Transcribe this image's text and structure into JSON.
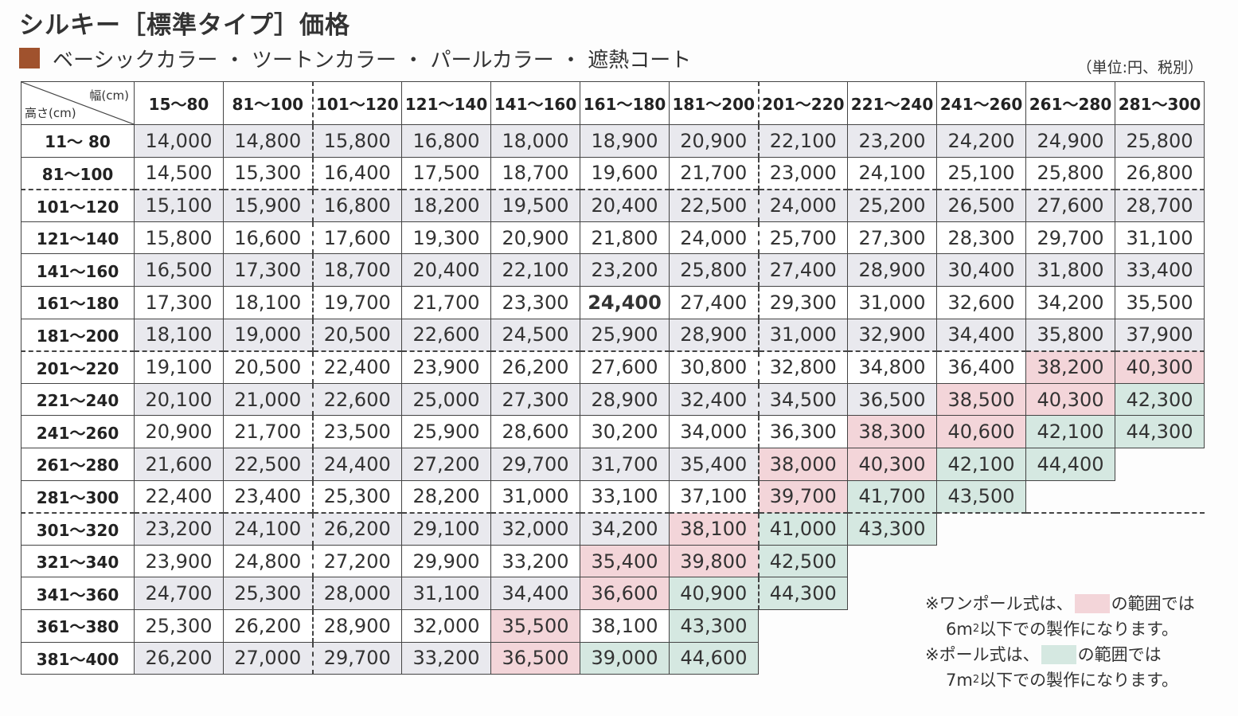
{
  "title": "シルキー［標準タイプ］価格",
  "subtitle": "ベーシックカラー ・ ツートンカラー ・ パールカラー ・ 遮熱コート",
  "unit_note": "（単位:円、税別）",
  "colors": {
    "swatch": "#a0522d",
    "pink": "#f3d5d9",
    "green": "#d5e8e1",
    "row_shade": "#e9e9ee"
  },
  "table": {
    "corner_width_label": "幅(cm)",
    "corner_height_label": "高さ(cm)",
    "columns": [
      "15～80",
      "81～100",
      "101～120",
      "121～140",
      "141～160",
      "161～180",
      "181～200",
      "201～220",
      "221～240",
      "241～260",
      "261～280",
      "281～300"
    ],
    "rows": [
      {
        "label": "11～ 80",
        "values": [
          "14,000",
          "14,800",
          "15,800",
          "16,800",
          "18,000",
          "18,900",
          "20,900",
          "22,100",
          "23,200",
          "24,200",
          "24,900",
          "25,800"
        ]
      },
      {
        "label": "81～100",
        "values": [
          "14,500",
          "15,300",
          "16,400",
          "17,500",
          "18,700",
          "19,600",
          "21,700",
          "23,000",
          "24,100",
          "25,100",
          "25,800",
          "26,800"
        ]
      },
      {
        "label": "101～120",
        "values": [
          "15,100",
          "15,900",
          "16,800",
          "18,200",
          "19,500",
          "20,400",
          "22,500",
          "24,000",
          "25,200",
          "26,500",
          "27,600",
          "28,700"
        ]
      },
      {
        "label": "121～140",
        "values": [
          "15,800",
          "16,600",
          "17,600",
          "19,300",
          "20,900",
          "21,800",
          "24,000",
          "25,700",
          "27,300",
          "28,300",
          "29,700",
          "31,100"
        ]
      },
      {
        "label": "141～160",
        "values": [
          "16,500",
          "17,300",
          "18,700",
          "20,400",
          "22,100",
          "23,200",
          "25,800",
          "27,400",
          "28,900",
          "30,400",
          "31,800",
          "33,400"
        ]
      },
      {
        "label": "161～180",
        "values": [
          "17,300",
          "18,100",
          "19,700",
          "21,700",
          "23,300",
          "24,400",
          "27,400",
          "29,300",
          "31,000",
          "32,600",
          "34,200",
          "35,500"
        ]
      },
      {
        "label": "181～200",
        "values": [
          "18,100",
          "19,000",
          "20,500",
          "22,600",
          "24,500",
          "25,900",
          "28,900",
          "31,000",
          "32,900",
          "34,400",
          "35,800",
          "37,900"
        ]
      },
      {
        "label": "201～220",
        "values": [
          "19,100",
          "20,500",
          "22,400",
          "23,900",
          "26,200",
          "27,600",
          "30,800",
          "32,800",
          "34,800",
          "36,400",
          "38,200",
          "40,300"
        ]
      },
      {
        "label": "221～240",
        "values": [
          "20,100",
          "21,000",
          "22,600",
          "25,000",
          "27,300",
          "28,900",
          "32,400",
          "34,500",
          "36,500",
          "38,500",
          "40,300",
          "42,300"
        ]
      },
      {
        "label": "241～260",
        "values": [
          "20,900",
          "21,700",
          "23,500",
          "25,900",
          "28,600",
          "30,200",
          "34,000",
          "36,300",
          "38,300",
          "40,600",
          "42,100",
          "44,300"
        ]
      },
      {
        "label": "261～280",
        "values": [
          "21,600",
          "22,500",
          "24,400",
          "27,200",
          "29,700",
          "31,700",
          "35,400",
          "38,000",
          "40,300",
          "42,100",
          "44,400"
        ]
      },
      {
        "label": "281～300",
        "values": [
          "22,400",
          "23,400",
          "25,300",
          "28,200",
          "31,000",
          "33,100",
          "37,100",
          "39,700",
          "41,700",
          "43,500"
        ]
      },
      {
        "label": "301～320",
        "values": [
          "23,200",
          "24,100",
          "26,200",
          "29,100",
          "32,000",
          "34,200",
          "38,100",
          "41,000",
          "43,300"
        ]
      },
      {
        "label": "321～340",
        "values": [
          "23,900",
          "24,800",
          "27,200",
          "29,900",
          "33,200",
          "35,400",
          "39,800",
          "42,500"
        ]
      },
      {
        "label": "341～360",
        "values": [
          "24,700",
          "25,300",
          "28,000",
          "31,100",
          "34,400",
          "36,600",
          "40,900",
          "44,300"
        ]
      },
      {
        "label": "361～380",
        "values": [
          "25,300",
          "26,200",
          "28,900",
          "32,000",
          "35,500",
          "38,100",
          "43,300"
        ]
      },
      {
        "label": "381～400",
        "values": [
          "26,200",
          "27,000",
          "29,700",
          "33,200",
          "36,500",
          "39,000",
          "44,600"
        ]
      }
    ]
  },
  "notes": {
    "one_pole_prefix": "※ワンポール式は、",
    "one_pole_suffix": "の範囲では",
    "one_pole_line2_pre": "6m",
    "one_pole_line2_sup": "2",
    "one_pole_line2_post": "以下での製作になります。",
    "pole_prefix": "※ポール式は、",
    "pole_suffix": "の範囲では",
    "pole_line2_pre": "7m",
    "pole_line2_sup": "2",
    "pole_line2_post": "以下での製作になります。"
  }
}
